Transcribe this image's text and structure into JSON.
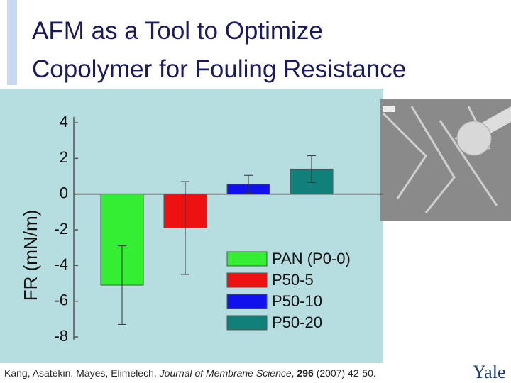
{
  "header": {
    "title_lines": [
      "AFM as a Tool to Optimize",
      "Copolymer for Fouling Resistance"
    ]
  },
  "chart_data": {
    "type": "bar",
    "y_label": "FR (mN/m)",
    "ylim": [
      -8,
      4
    ],
    "yticks": [
      -8,
      -6,
      -4,
      -2,
      0,
      2,
      4
    ],
    "series": [
      {
        "name": "PAN (P0-0)",
        "color": "#33ee33",
        "values": [
          -5.1
        ],
        "errors": [
          2.2
        ]
      },
      {
        "name": "P50-5",
        "color": "#ee1111",
        "values": [
          -1.9
        ],
        "errors": [
          2.6
        ]
      },
      {
        "name": "P50-10",
        "color": "#1111ee",
        "values": [
          0.55
        ],
        "errors": [
          0.5
        ]
      },
      {
        "name": "P50-20",
        "color": "#117f7a",
        "values": [
          1.4
        ],
        "errors": [
          0.75
        ]
      }
    ]
  },
  "citation": {
    "authors": "Kang, Asatekin, Mayes, Elimelech, ",
    "journal": "Journal of Membrane Science",
    "sep": ", ",
    "volume": "296",
    "rest": " (2007) 42-50."
  },
  "logo": "Yale"
}
